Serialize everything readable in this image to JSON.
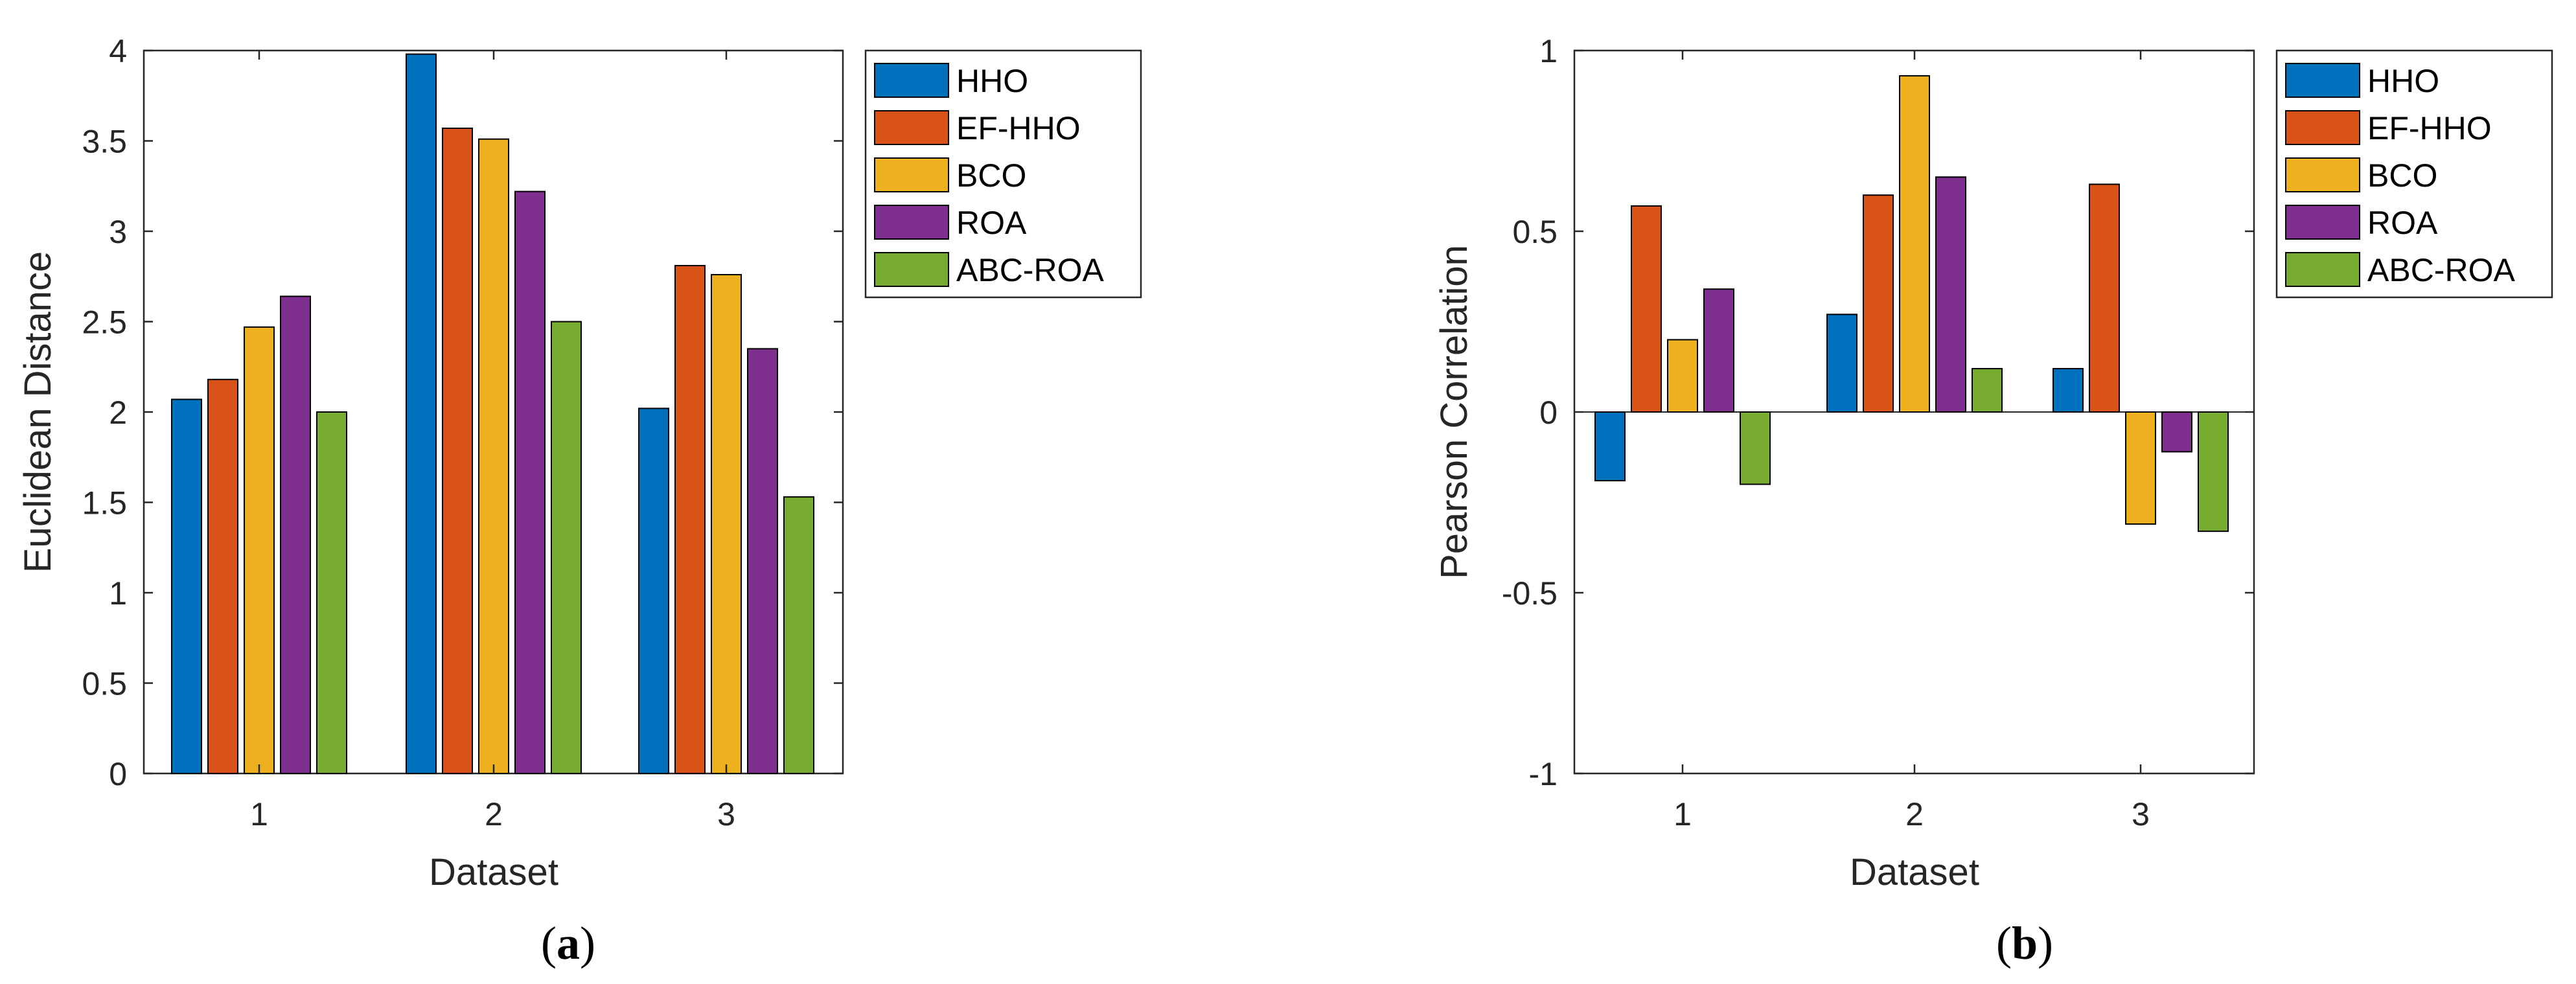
{
  "series_colors": [
    "#0072BD",
    "#D95319",
    "#EDB120",
    "#7E2F8E",
    "#77AC30"
  ],
  "chart_data": [
    {
      "type": "bar",
      "categories": [
        "1",
        "2",
        "3"
      ],
      "series": [
        {
          "name": "HHO",
          "values": [
            2.07,
            3.98,
            2.02
          ]
        },
        {
          "name": "EF-HHO",
          "values": [
            2.18,
            3.57,
            2.81
          ]
        },
        {
          "name": "BCO",
          "values": [
            2.47,
            3.51,
            2.76
          ]
        },
        {
          "name": "ROA",
          "values": [
            2.64,
            3.22,
            2.35
          ]
        },
        {
          "name": "ABC-ROA",
          "values": [
            2.0,
            2.5,
            1.53
          ]
        }
      ],
      "xlabel": "Dataset",
      "ylabel": "Euclidean Distance",
      "ylim": [
        0,
        4
      ],
      "yticks": [
        0,
        0.5,
        1,
        1.5,
        2,
        2.5,
        3,
        3.5,
        4
      ],
      "ytick_labels": [
        "0",
        "0.5",
        "1",
        "1.5",
        "2",
        "2.5",
        "3",
        "3.5",
        "4"
      ],
      "legend_position": "outside-right-top",
      "grid": false,
      "caption_letter": "a"
    },
    {
      "type": "bar",
      "categories": [
        "1",
        "2",
        "3"
      ],
      "series": [
        {
          "name": "HHO",
          "values": [
            -0.19,
            0.27,
            0.12
          ]
        },
        {
          "name": "EF-HHO",
          "values": [
            0.57,
            0.6,
            0.63
          ]
        },
        {
          "name": "BCO",
          "values": [
            0.2,
            0.93,
            -0.31
          ]
        },
        {
          "name": "ROA",
          "values": [
            0.34,
            0.65,
            -0.11
          ]
        },
        {
          "name": "ABC-ROA",
          "values": [
            -0.2,
            0.12,
            -0.33
          ]
        }
      ],
      "xlabel": "Dataset",
      "ylabel": "Pearson Correlation",
      "ylim": [
        -1,
        1
      ],
      "yticks": [
        -1,
        -0.5,
        0,
        0.5,
        1
      ],
      "ytick_labels": [
        "-1",
        "-0.5",
        "0",
        "0.5",
        "1"
      ],
      "legend_position": "outside-right-top",
      "grid": false,
      "caption_letter": "b"
    }
  ]
}
